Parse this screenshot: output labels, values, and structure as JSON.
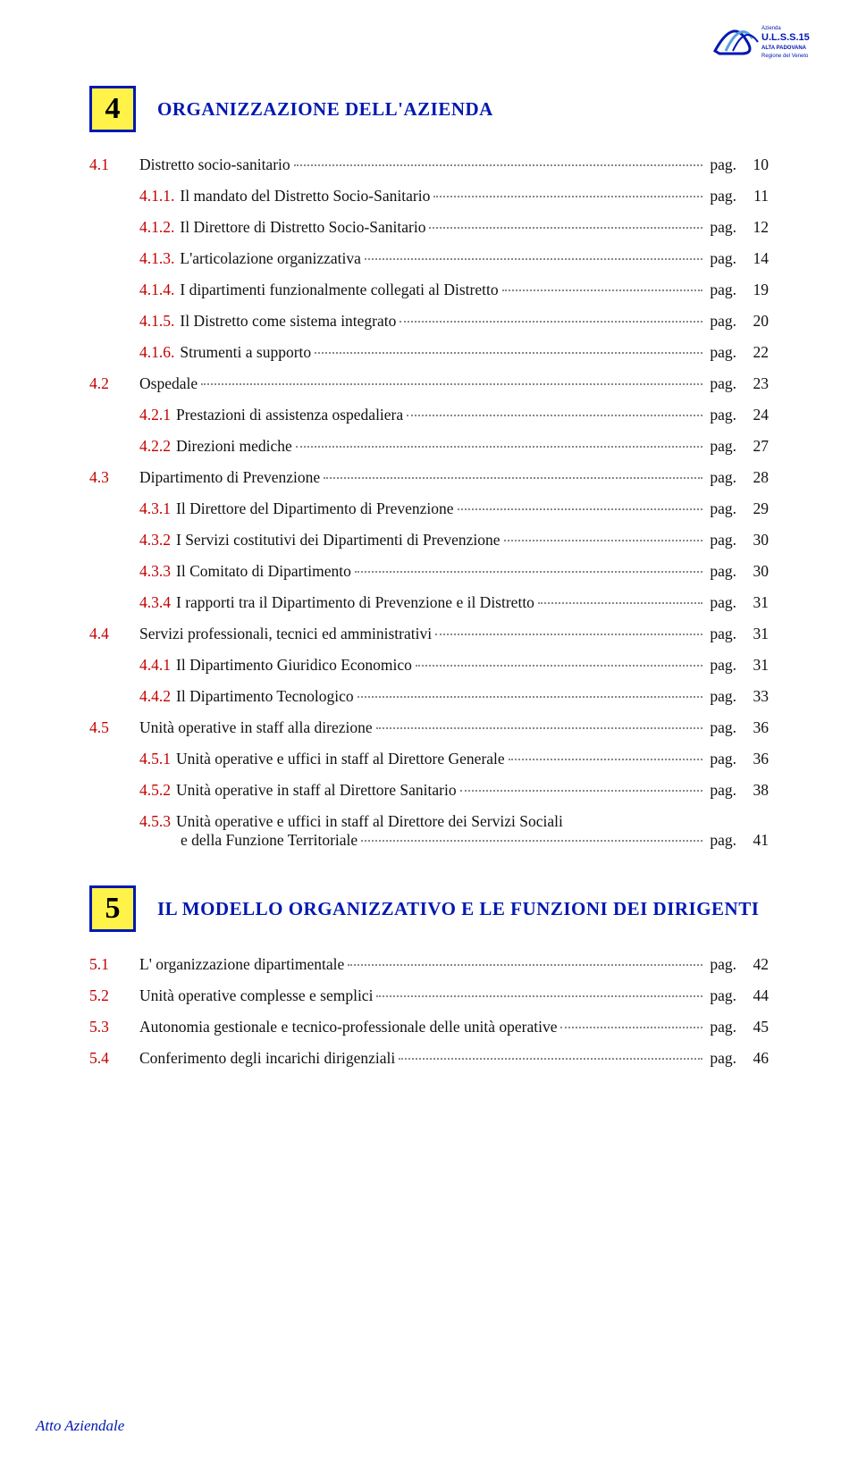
{
  "logo": {
    "org_line1": "Azienda",
    "org_line2": "U.L.S.S.15",
    "org_line3": "ALTA PADOVANA",
    "org_line4": "Regione del Veneto",
    "primary_color": "#0018b0"
  },
  "pag_label": "pag.",
  "chapter4": {
    "number": "4",
    "title": "ORGANIZZAZIONE  DELL'AZIENDA",
    "box_border_color": "#0018b0",
    "box_fill_color": "#fff34a",
    "title_color": "#0018b0",
    "entries": [
      {
        "type": "top",
        "num": "4.1",
        "text": "Distretto socio-sanitario",
        "page": "10"
      },
      {
        "type": "sub",
        "num": "4.1.1.",
        "text": "Il mandato del Distretto Socio-Sanitario",
        "page": "11"
      },
      {
        "type": "sub",
        "num": "4.1.2.",
        "text": "Il Direttore di Distretto Socio-Sanitario",
        "page": "12"
      },
      {
        "type": "sub",
        "num": "4.1.3.",
        "text": "L'articolazione organizzativa",
        "page": "14"
      },
      {
        "type": "sub",
        "num": "4.1.4.",
        "text": "I dipartimenti funzionalmente collegati al Distretto",
        "page": "19"
      },
      {
        "type": "sub",
        "num": "4.1.5.",
        "text": "Il Distretto come sistema integrato",
        "page": "20"
      },
      {
        "type": "sub",
        "num": "4.1.6.",
        "text": "Strumenti a supporto",
        "page": "22"
      },
      {
        "type": "top",
        "num": "4.2",
        "text": "Ospedale",
        "page": "23"
      },
      {
        "type": "sub",
        "num": "4.2.1",
        "text": "Prestazioni di assistenza ospedaliera",
        "page": "24"
      },
      {
        "type": "sub",
        "num": "4.2.2",
        "text": "Direzioni mediche",
        "page": "27"
      },
      {
        "type": "top",
        "num": "4.3",
        "text": "Dipartimento di Prevenzione",
        "page": "28"
      },
      {
        "type": "sub",
        "num": "4.3.1",
        "text": "Il Direttore del Dipartimento di Prevenzione",
        "page": "29"
      },
      {
        "type": "sub",
        "num": "4.3.2",
        "text": "I Servizi costitutivi dei Dipartimenti di Prevenzione",
        "page": "30"
      },
      {
        "type": "sub",
        "num": "4.3.3",
        "text": "Il Comitato di Dipartimento",
        "page": "30"
      },
      {
        "type": "sub",
        "num": "4.3.4",
        "text": "I rapporti tra il Dipartimento di Prevenzione e il Distretto",
        "page": "31"
      },
      {
        "type": "top",
        "num": "4.4",
        "text": "Servizi professionali, tecnici ed amministrativi",
        "page": "31"
      },
      {
        "type": "sub",
        "num": "4.4.1",
        "text": "Il Dipartimento Giuridico Economico",
        "page": "31"
      },
      {
        "type": "sub",
        "num": "4.4.2",
        "text": "Il Dipartimento Tecnologico",
        "page": "33"
      },
      {
        "type": "top",
        "num": "4.5",
        "text": "Unità operative  in staff alla direzione",
        "page": "36"
      },
      {
        "type": "sub",
        "num": "4.5.1",
        "text": "Unità operative e uffici in staff al Direttore Generale",
        "page": "36"
      },
      {
        "type": "sub",
        "num": "4.5.2",
        "text": "Unità operative in staff al Direttore Sanitario",
        "page": "38"
      },
      {
        "type": "sub-multi",
        "num": "4.5.3",
        "text_line1": "Unità operative e uffici in staff al Direttore dei Servizi Sociali",
        "text_line2": "e della Funzione Territoriale",
        "page": "41"
      }
    ]
  },
  "chapter5": {
    "number": "5",
    "title": "IL MODELLO ORGANIZZATIVO E LE FUNZIONI DEI DIRIGENTI",
    "entries": [
      {
        "type": "top",
        "num": "5.1",
        "text": "L' organizzazione dipartimentale",
        "page": "42"
      },
      {
        "type": "top",
        "num": "5.2",
        "text": "Unità operative complesse e semplici",
        "page": "44"
      },
      {
        "type": "top",
        "num": "5.3",
        "text": "Autonomia gestionale e tecnico-professionale delle unità operative",
        "page": "45"
      },
      {
        "type": "top",
        "num": "5.4",
        "text": "Conferimento degli incarichi dirigenziali",
        "page": "46"
      }
    ]
  },
  "footer_text": "Atto Aziendale",
  "colors": {
    "section_num": "#c30000",
    "body_text": "#111111",
    "leader_dot": "#888888"
  }
}
